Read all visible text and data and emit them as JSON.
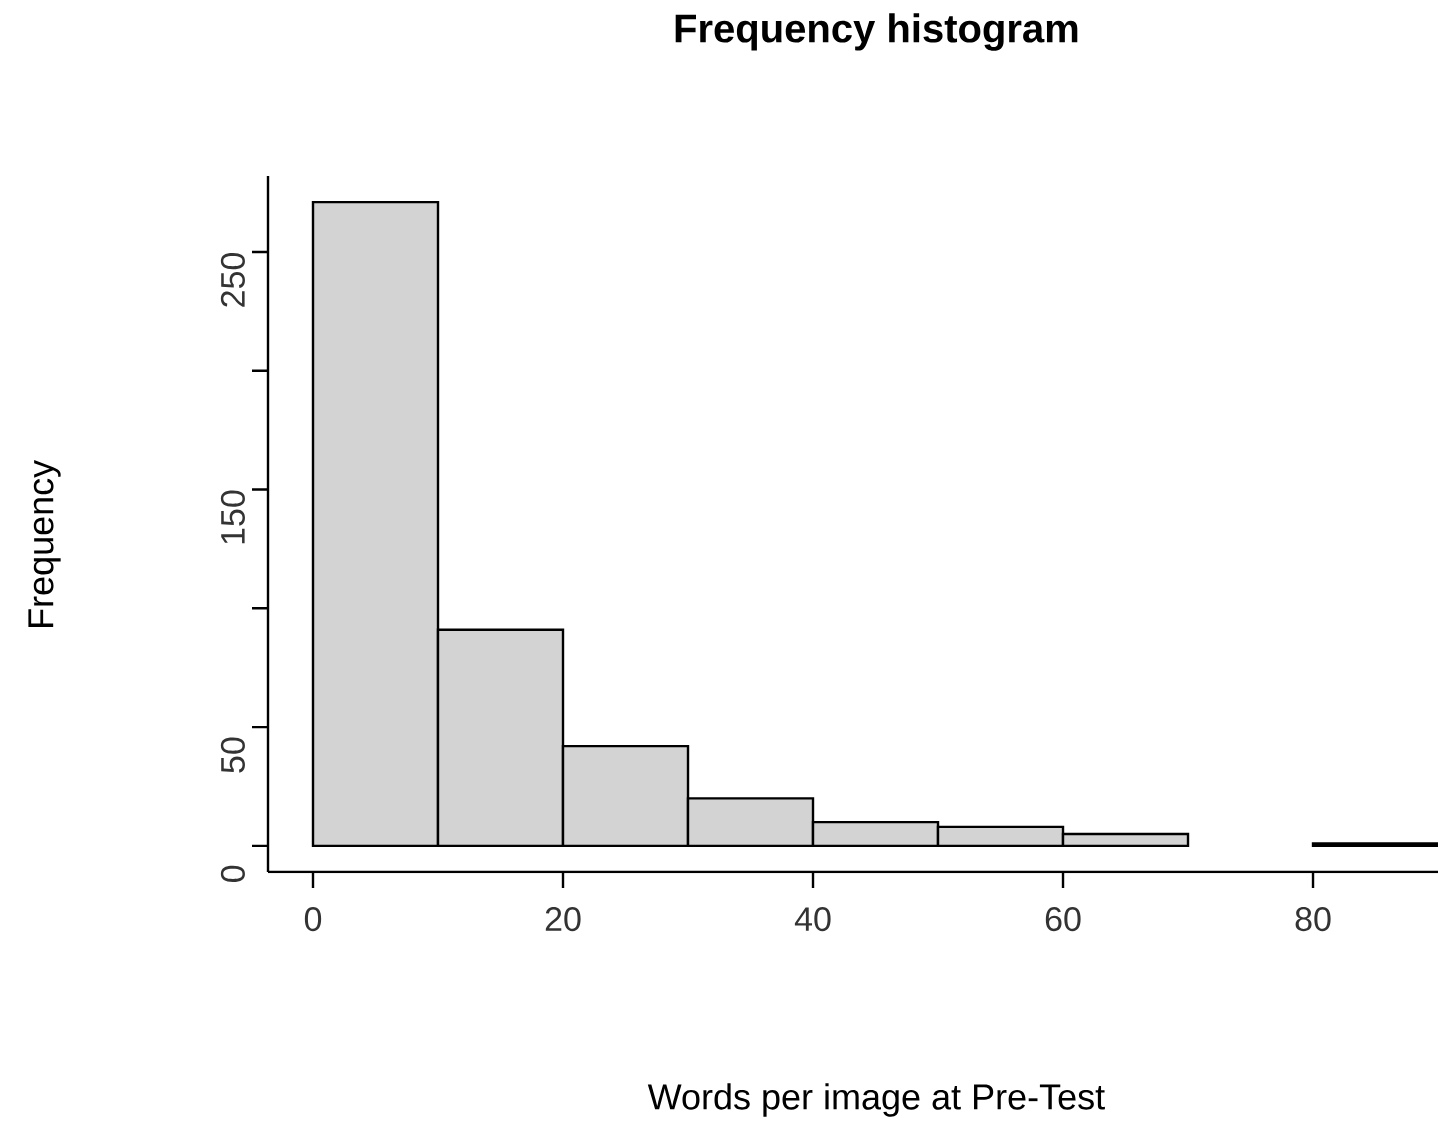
{
  "chart_data": {
    "type": "histogram",
    "title": "Frequency histogram",
    "xlabel": "Words per image at Pre-Test",
    "ylabel": "Frequency",
    "bins": [
      0,
      10,
      20,
      30,
      40,
      50,
      60,
      70,
      80,
      90
    ],
    "values": [
      271,
      91,
      42,
      20,
      10,
      8,
      5,
      0,
      1
    ],
    "color": "#d3d3d3",
    "xlim": [
      -3.6,
      90
    ],
    "ylim": [
      -11,
      282
    ],
    "xticks": [
      0,
      20,
      40,
      60,
      80
    ],
    "yticks": [
      0,
      50,
      {
        "value": 100,
        "label": null
      },
      150,
      {
        "value": 200,
        "label": null
      },
      250
    ]
  }
}
